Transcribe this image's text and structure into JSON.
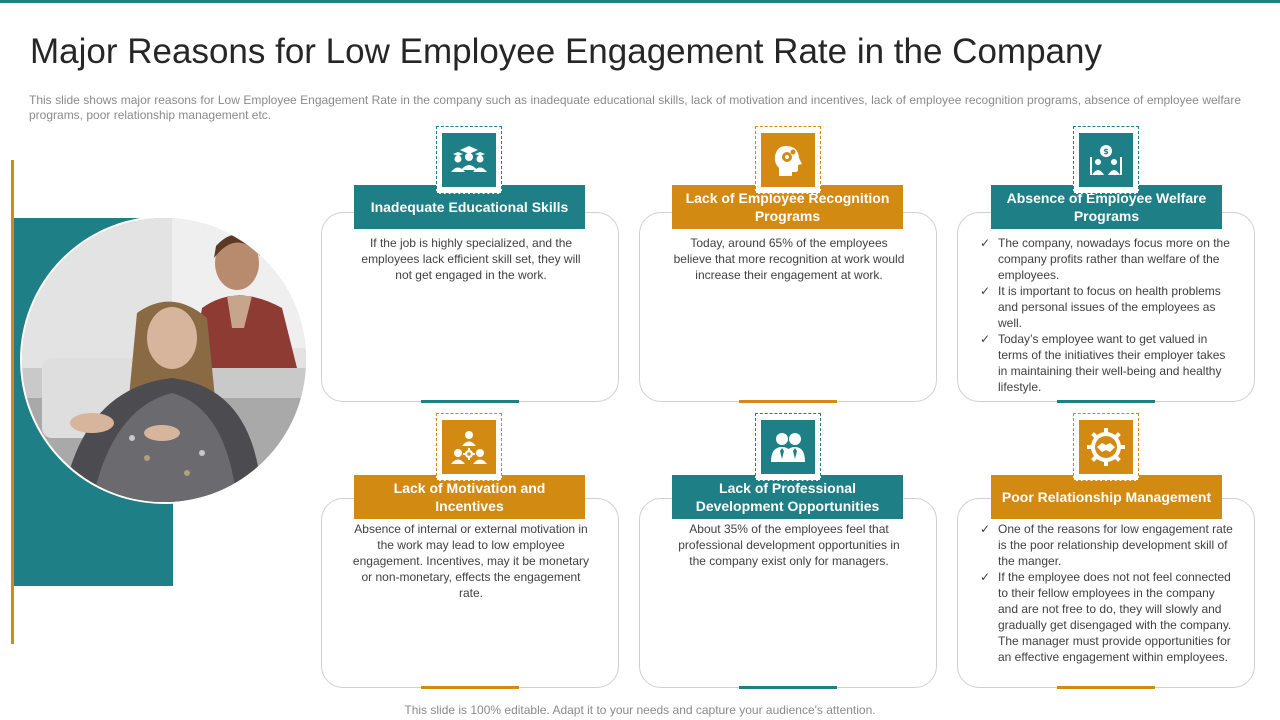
{
  "slide": {
    "title": "Major Reasons for Low Employee Engagement Rate in the Company",
    "subtitle": "This slide shows major reasons for Low Employee Engagement Rate in the company such as inadequate educational skills, lack of motivation and incentives, lack of employee recognition programs, absence of employee welfare programs, poor relationship management etc.",
    "footer": "This slide is 100% editable. Adapt it to your needs and capture your audience's attention."
  },
  "colors": {
    "teal": "#1f7f86",
    "orange": "#d38a12"
  },
  "cards": [
    {
      "label": "Inadequate Educational Skills",
      "icon": "graduates-icon",
      "text": "If the job is highly specialized, and the employees lack efficient skill set, they will not get engaged in the work."
    },
    {
      "label": "Lack of Employee Recognition Programs",
      "icon": "head-gears-icon",
      "text": "Today, around 65% of the employees believe that more recognition at work would increase their engagement at work."
    },
    {
      "label": "Absence of Employee Welfare Programs",
      "icon": "money-people-icon",
      "bullets": [
        "The company, nowadays focus more on the company profits rather than welfare of the employees.",
        "It is important to focus on health problems and personal issues of the employees as well.",
        "Today’s employee want to get valued in terms of the initiatives their employer takes in maintaining their well-being and healthy lifestyle."
      ]
    },
    {
      "label": "Lack of Motivation and Incentives",
      "icon": "team-gear-icon",
      "text": "Absence of internal or external motivation in the work may lead to low employee engagement. Incentives, may it be monetary or non-monetary, effects the engagement rate."
    },
    {
      "label": "Lack of Professional Development Opportunities",
      "icon": "business-people-icon",
      "text": "About 35% of the employees feel that professional development opportunities in the company exist only for managers."
    },
    {
      "label": "Poor Relationship Management",
      "icon": "handshake-gear-icon",
      "bullets": [
        "One of the reasons for low engagement rate is the poor relationship development skill of the manger.",
        "If the employee does not not feel connected to their fellow employees in the company and are not free to do, they will slowly and gradually get disengaged with the company. The manager must provide opportunities for an effective engagement within employees."
      ]
    }
  ]
}
